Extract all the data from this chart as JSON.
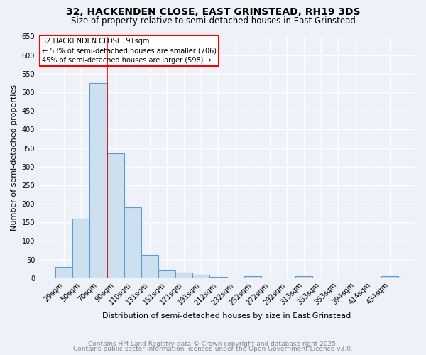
{
  "title": "32, HACKENDEN CLOSE, EAST GRINSTEAD, RH19 3DS",
  "subtitle": "Size of property relative to semi-detached houses in East Grinstead",
  "xlabel": "Distribution of semi-detached houses by size in East Grinstead",
  "ylabel": "Number of semi-detached properties",
  "categories": [
    "29sqm",
    "50sqm",
    "70sqm",
    "90sqm",
    "110sqm",
    "131sqm",
    "151sqm",
    "171sqm",
    "191sqm",
    "212sqm",
    "232sqm",
    "252sqm",
    "272sqm",
    "292sqm",
    "313sqm",
    "333sqm",
    "353sqm",
    "394sqm",
    "414sqm",
    "434sqm"
  ],
  "values": [
    30,
    160,
    525,
    335,
    190,
    62,
    22,
    14,
    10,
    4,
    0,
    5,
    0,
    0,
    5,
    0,
    0,
    0,
    0,
    5
  ],
  "bar_color": "#cce0f0",
  "bar_edge_color": "#5b9bd5",
  "vline_x_index": 2,
  "vline_color": "red",
  "annotation_lines": [
    "32 HACKENDEN CLOSE: 91sqm",
    "← 53% of semi-detached houses are smaller (706)",
    "45% of semi-detached houses are larger (598) →"
  ],
  "annotation_box_color": "red",
  "ylim": [
    0,
    650
  ],
  "yticks": [
    0,
    50,
    100,
    150,
    200,
    250,
    300,
    350,
    400,
    450,
    500,
    550,
    600,
    650
  ],
  "footer1": "Contains HM Land Registry data © Crown copyright and database right 2025.",
  "footer2": "Contains public sector information licensed under the Open Government Licence v3.0.",
  "background_color": "#eef2f8",
  "grid_color": "white",
  "title_fontsize": 10,
  "subtitle_fontsize": 8.5,
  "axis_label_fontsize": 8,
  "tick_fontsize": 7,
  "footer_fontsize": 6.5
}
